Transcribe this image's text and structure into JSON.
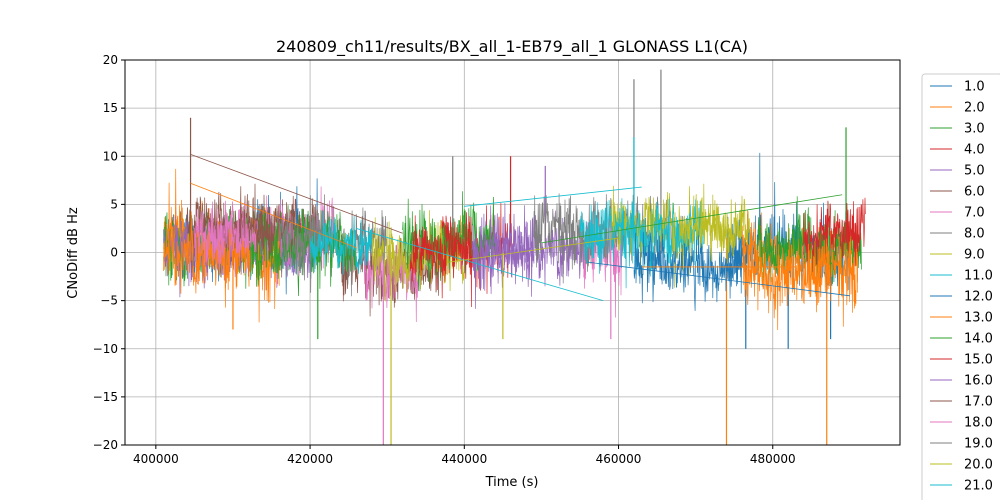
{
  "chart_data": {
    "type": "line",
    "title": "240809_ch11/results/BX_all_1-EB79_all_1 GLONASS L1(CA)",
    "xlabel": "Time (s)",
    "ylabel": "CNoDiff dB Hz",
    "xlim": [
      396000,
      496500
    ],
    "ylim": [
      -20,
      20
    ],
    "xticks": [
      400000,
      420000,
      440000,
      460000,
      480000
    ],
    "xtick_labels": [
      "400000",
      "420000",
      "440000",
      "460000",
      "480000"
    ],
    "yticks": [
      -20,
      -15,
      -10,
      -5,
      0,
      5,
      10,
      15,
      20
    ],
    "ytick_labels": [
      "−20",
      "−15",
      "−10",
      "−5",
      "0",
      "5",
      "10",
      "15",
      "20"
    ],
    "grid": true,
    "legend_position": "right, outside plot",
    "series": [
      {
        "name": "1.0",
        "color": "#1f77b4",
        "segments": [
          [
            401000,
            421000
          ],
          [
            474000,
            490000
          ]
        ],
        "values": [
          1.0,
          0.5
        ],
        "amp": 2.2,
        "spikes": [
          [
            487500,
            -9
          ],
          [
            476500,
            -10
          ]
        ]
      },
      {
        "name": "2.0",
        "color": "#ff7f0e",
        "segments": [
          [
            401000,
            416000
          ],
          [
            476000,
            491000
          ]
        ],
        "values": [
          1.5,
          0.0
        ],
        "amp": 2.0,
        "spikes": [
          [
            474000,
            -20
          ],
          [
            487000,
            -20
          ]
        ]
      },
      {
        "name": "3.0",
        "color": "#2ca02c",
        "segments": [
          [
            401000,
            419000
          ],
          [
            478000,
            491500
          ]
        ],
        "values": [
          1.0,
          1.0
        ],
        "amp": 2.2,
        "spikes": [
          [
            489500,
            13
          ]
        ]
      },
      {
        "name": "4.0",
        "color": "#d62728",
        "segments": [
          [
            436500,
            446500
          ],
          [
            484000,
            492000
          ]
        ],
        "values": [
          1.0,
          2.5
        ],
        "amp": 2.0,
        "spikes": [
          [
            446000,
            10
          ]
        ]
      },
      {
        "name": "5.0",
        "color": "#9467bd",
        "segments": [
          [
            401000,
            421000
          ],
          [
            442000,
            455500
          ]
        ],
        "values": [
          0.5,
          0.5
        ],
        "amp": 2.0,
        "spikes": [
          [
            450500,
            9
          ]
        ]
      },
      {
        "name": "6.0",
        "color": "#8c564b",
        "segments": [
          [
            404000,
            421000
          ],
          [
            424000,
            437000
          ]
        ],
        "values": [
          3.0,
          -1.5
        ],
        "amp": 2.0,
        "spikes": [
          [
            404500,
            14
          ]
        ]
      },
      {
        "name": "7.0",
        "color": "#e377c2",
        "segments": [
          [
            407000,
            423000
          ],
          [
            427000,
            434000
          ],
          [
            455500,
            460500
          ]
        ],
        "values": [
          2.0,
          -1.5,
          0.5
        ],
        "amp": 2.2,
        "spikes": [
          [
            429500,
            -20
          ],
          [
            459000,
            -9
          ]
        ]
      },
      {
        "name": "8.0",
        "color": "#7f7f7f",
        "segments": [
          [
            419000,
            430000
          ],
          [
            449000,
            469000
          ]
        ],
        "values": [
          1.5,
          2.5
        ],
        "amp": 2.2,
        "spikes": [
          [
            462000,
            18
          ],
          [
            465500,
            19
          ],
          [
            438500,
            10
          ]
        ]
      },
      {
        "name": "9.0",
        "color": "#bcbd22",
        "segments": [
          [
            428000,
            440000
          ],
          [
            459000,
            477000
          ]
        ],
        "values": [
          0.0,
          3.0
        ],
        "amp": 2.0,
        "spikes": [
          [
            430500,
            -20
          ],
          [
            445000,
            -9
          ]
        ]
      },
      {
        "name": "11.0",
        "color": "#17becf",
        "segments": [
          [
            455000,
            471000
          ]
        ],
        "values": [
          2.0
        ],
        "amp": 2.2,
        "spikes": [
          [
            462000,
            12
          ]
        ]
      },
      {
        "name": "12.0",
        "color": "#1f77b4",
        "segments": [
          [
            462000,
            476000
          ]
        ],
        "values": [
          -1.0
        ],
        "amp": 2.0,
        "spikes": [
          [
            482000,
            -10
          ]
        ]
      },
      {
        "name": "13.0",
        "color": "#ff7f0e",
        "segments": [
          [
            401000,
            416000
          ],
          [
            476000,
            491000
          ]
        ],
        "values": [
          0.0,
          -2.0
        ],
        "amp": 2.2,
        "spikes": [
          [
            410000,
            -8
          ]
        ]
      },
      {
        "name": "14.0",
        "color": "#2ca02c",
        "segments": [
          [
            412000,
            426000
          ],
          [
            432000,
            444000
          ]
        ],
        "values": [
          1.0,
          1.5
        ],
        "amp": 2.2,
        "spikes": [
          [
            421000,
            -9
          ]
        ]
      },
      {
        "name": "15.0",
        "color": "#d62728",
        "segments": [
          [
            433000,
            441000
          ]
        ],
        "values": [
          0.5
        ],
        "amp": 2.0,
        "spikes": []
      },
      {
        "name": "16.0",
        "color": "#9467bd",
        "segments": [
          [
            441000,
            449000
          ]
        ],
        "values": [
          1.0
        ],
        "amp": 2.0,
        "spikes": []
      },
      {
        "name": "17.0",
        "color": "#8c564b",
        "segments": [
          [
            410000,
            418000
          ]
        ],
        "values": [
          2.5
        ],
        "amp": 1.5,
        "spikes": []
      },
      {
        "name": "18.0",
        "color": "#e377c2",
        "segments": [
          [
            405000,
            413000
          ]
        ],
        "values": [
          2.0
        ],
        "amp": 1.5,
        "spikes": []
      },
      {
        "name": "19.0",
        "color": "#7f7f7f",
        "segments": [
          [
            416000,
            422000
          ]
        ],
        "values": [
          1.5
        ],
        "amp": 1.5,
        "spikes": []
      },
      {
        "name": "20.0",
        "color": "#bcbd22",
        "segments": [
          [
            468000,
            476000
          ]
        ],
        "values": [
          3.0
        ],
        "amp": 1.5,
        "spikes": []
      },
      {
        "name": "21.0",
        "color": "#17becf",
        "segments": [
          [
            420000,
            428000
          ]
        ],
        "values": [
          1.0
        ],
        "amp": 1.5,
        "spikes": []
      }
    ],
    "connector_lines": [
      {
        "color": "#ff7f0e",
        "from": [
          404500,
          7.2
        ],
        "to": [
          426000,
          0.5
        ]
      },
      {
        "color": "#8c564b",
        "from": [
          404500,
          10.2
        ],
        "to": [
          432000,
          2.0
        ]
      },
      {
        "color": "#17becf",
        "from": [
          440000,
          4.8
        ],
        "to": [
          463000,
          6.8
        ]
      },
      {
        "color": "#17becf",
        "from": [
          426000,
          2.5
        ],
        "to": [
          458000,
          -5.0
        ]
      },
      {
        "color": "#bcbd22",
        "from": [
          438000,
          -1.0
        ],
        "to": [
          460000,
          1.5
        ]
      },
      {
        "color": "#ff7f0e",
        "from": [
          463000,
          -1.5
        ],
        "to": [
          483000,
          -1.5
        ]
      },
      {
        "color": "#2ca02c",
        "from": [
          450000,
          1.0
        ],
        "to": [
          489000,
          6.0
        ]
      },
      {
        "color": "#1f77b4",
        "from": [
          456000,
          -1.0
        ],
        "to": [
          490000,
          -4.5
        ]
      }
    ]
  }
}
